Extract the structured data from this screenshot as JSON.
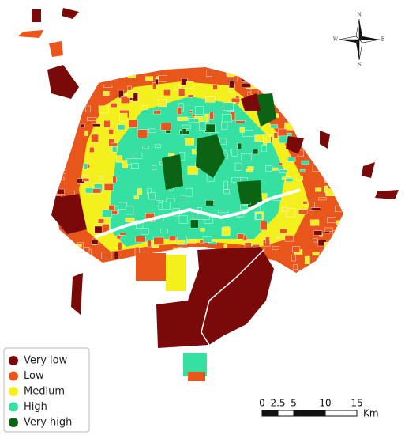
{
  "legend": {
    "items": [
      {
        "name": "Very low",
        "color": "#7a0a0a"
      },
      {
        "name": "Low",
        "color": "#e8561c"
      },
      {
        "name": "Medium",
        "color": "#f4f01e"
      },
      {
        "name": "High",
        "color": "#35e0a0"
      },
      {
        "name": "Very high",
        "color": "#0b6414"
      }
    ]
  },
  "compass": {
    "north": "N",
    "east": "E",
    "south": "S",
    "west": "W"
  },
  "scale": {
    "ticks": [
      0,
      2.5,
      5,
      10,
      15
    ],
    "unit": "Km"
  }
}
